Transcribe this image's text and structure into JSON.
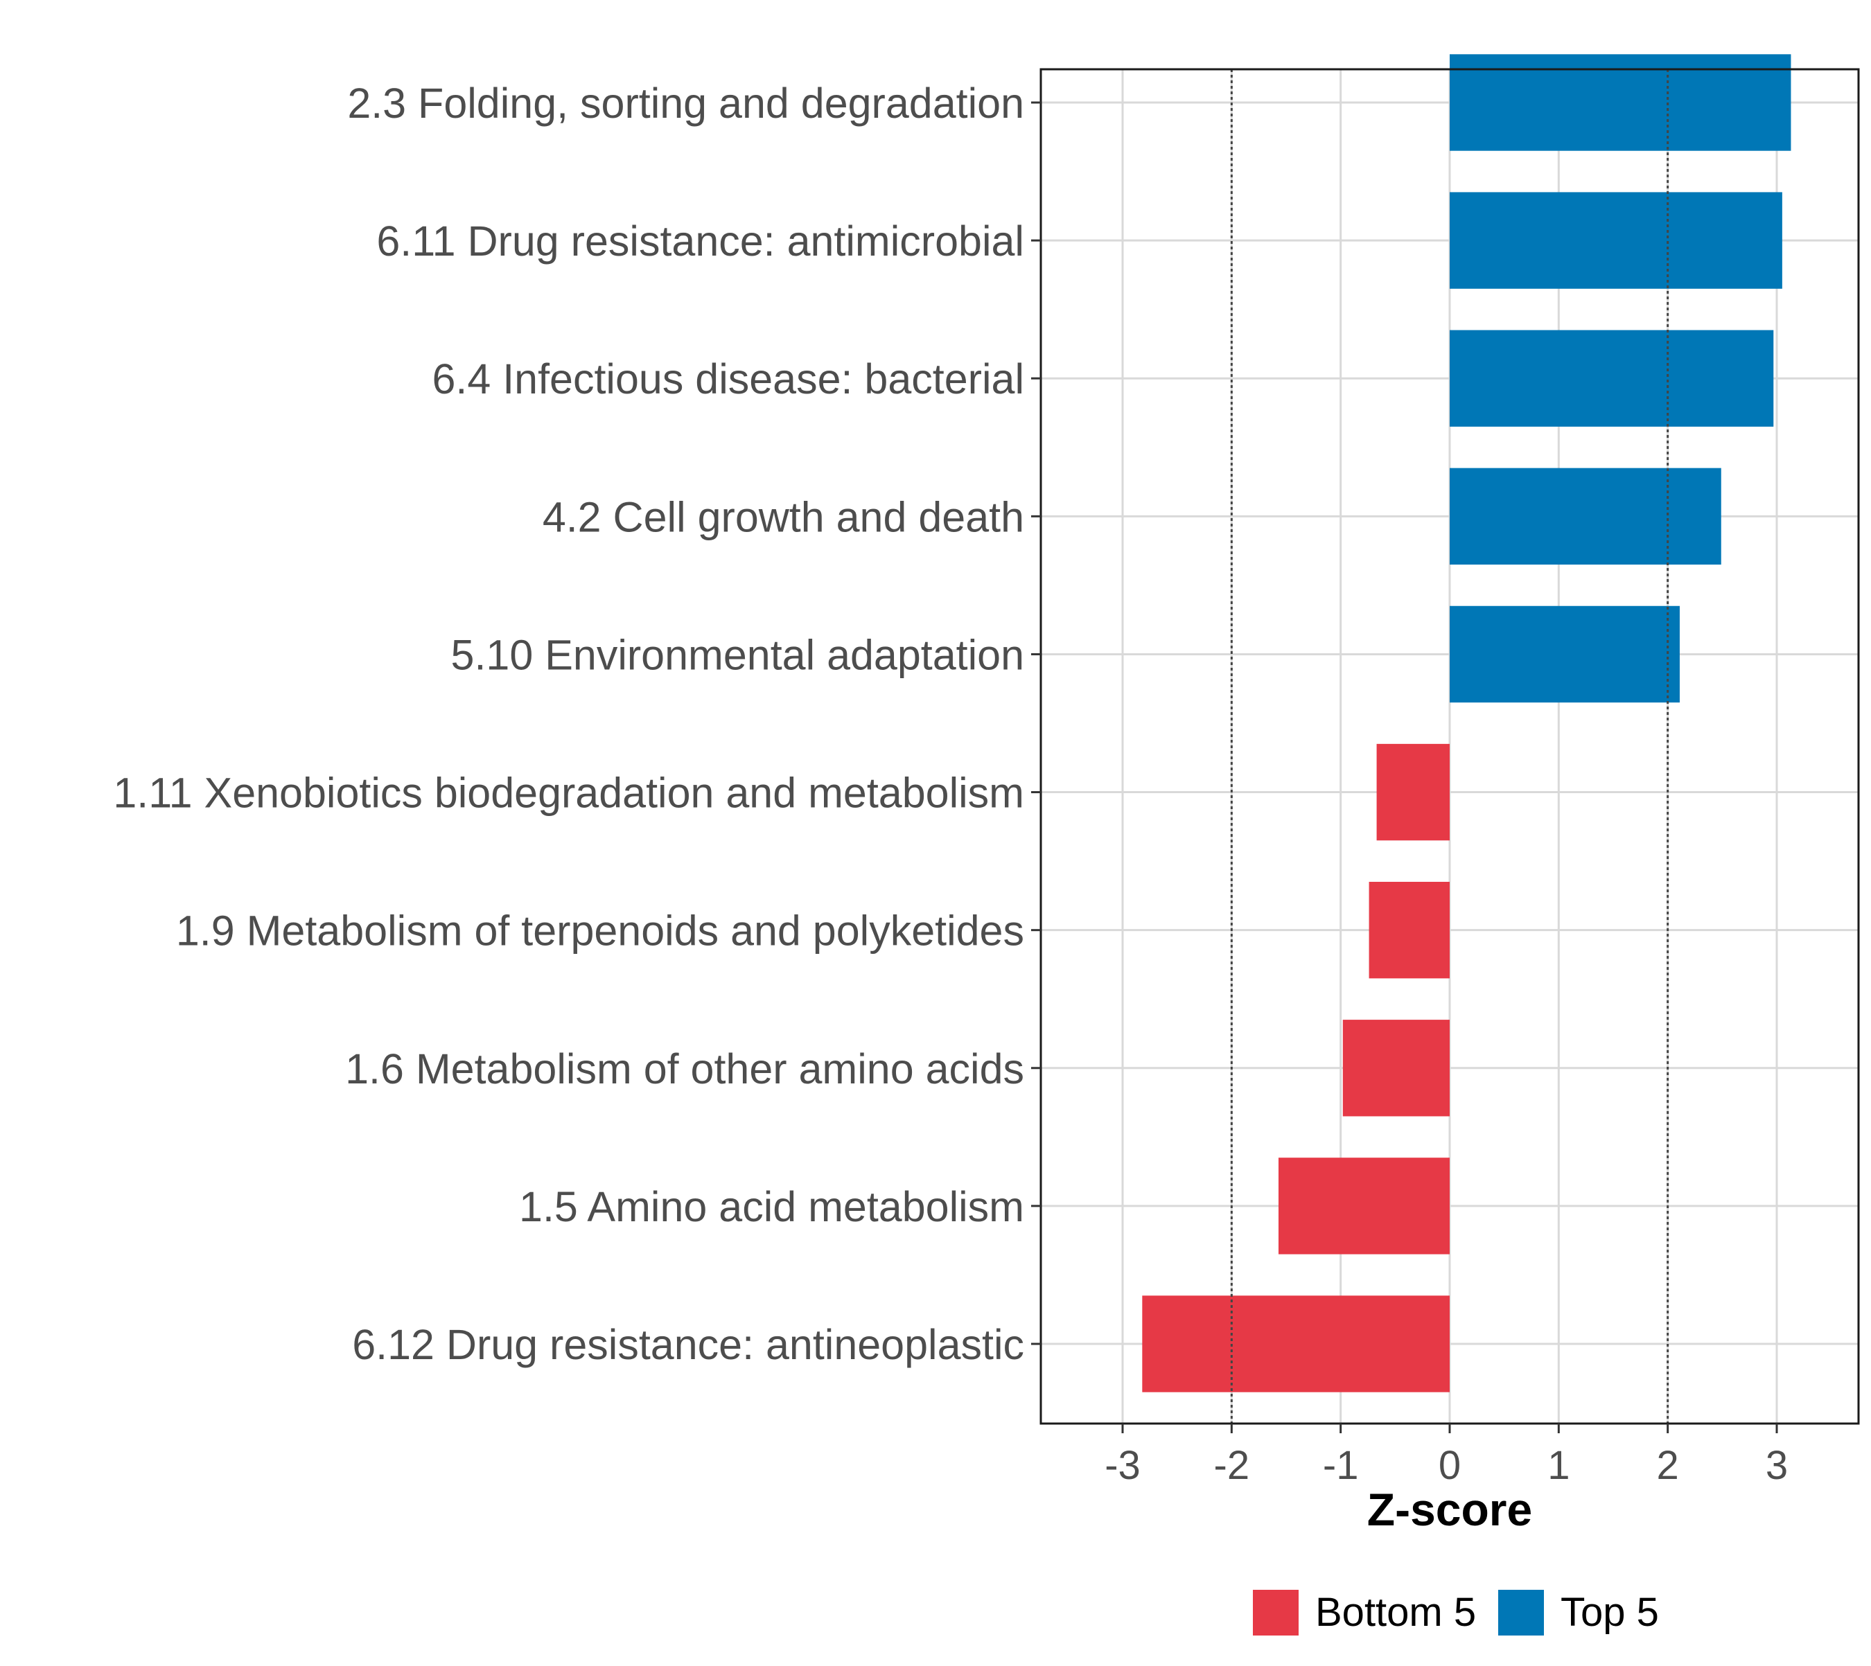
{
  "chart_data": {
    "type": "bar",
    "orientation": "horizontal",
    "title": "",
    "xlabel": "Z-score",
    "ylabel": "",
    "xlim": [
      -3.75,
      3.75
    ],
    "x_ticks": [
      -3,
      -2,
      -1,
      0,
      1,
      2,
      3
    ],
    "x_tick_labels": [
      "-3",
      "-2",
      "-1",
      "0",
      "1",
      "2",
      "3"
    ],
    "reference_lines": [
      -2,
      2
    ],
    "grid": true,
    "legend_position": "bottom",
    "categories": [
      "2.3 Folding, sorting and degradation",
      "6.11 Drug resistance: antimicrobial",
      "6.4 Infectious disease: bacterial",
      "4.2 Cell growth and death",
      "5.10 Environmental adaptation",
      "1.11 Xenobiotics biodegradation and metabolism",
      "1.9 Metabolism of terpenoids and polyketides",
      "1.6 Metabolism of other amino acids",
      "1.5 Amino acid metabolism",
      "6.12 Drug resistance: antineoplastic"
    ],
    "values": [
      3.13,
      3.05,
      2.97,
      2.49,
      2.11,
      -0.67,
      -0.74,
      -0.98,
      -1.57,
      -2.82
    ],
    "groups": [
      "Top 5",
      "Top 5",
      "Top 5",
      "Top 5",
      "Top 5",
      "Bottom 5",
      "Bottom 5",
      "Bottom 5",
      "Bottom 5",
      "Bottom 5"
    ],
    "legend": [
      {
        "name": "Bottom 5",
        "color": "#E63946"
      },
      {
        "name": "Top 5",
        "color": "#0077B6"
      }
    ]
  }
}
